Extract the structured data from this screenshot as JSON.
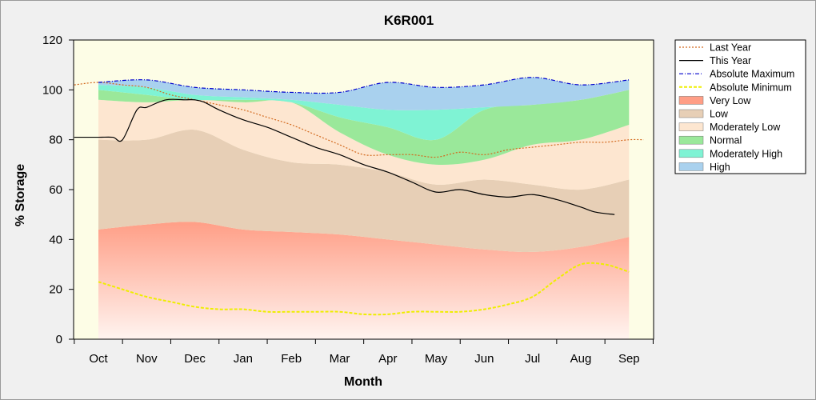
{
  "chart_data": {
    "type": "area",
    "title": "K6R001",
    "xlabel": "Month",
    "ylabel": "% Storage",
    "ylim": [
      0,
      120
    ],
    "yticks": [
      0,
      20,
      40,
      60,
      80,
      100,
      120
    ],
    "months": [
      "Oct",
      "Nov",
      "Dec",
      "Jan",
      "Feb",
      "Mar",
      "Apr",
      "May",
      "Jun",
      "Jul",
      "Aug",
      "Sep"
    ],
    "bands_x": [
      0,
      1,
      2,
      3,
      4,
      5,
      6,
      7,
      8,
      9,
      10,
      11
    ],
    "bands": [
      {
        "name": "Very Low",
        "color": "#ff9e86",
        "lower": [
          0,
          0,
          0,
          0,
          0,
          0,
          0,
          0,
          0,
          0,
          0,
          0
        ],
        "upper": [
          44,
          46,
          47,
          44,
          43,
          42,
          40,
          38,
          36,
          35,
          37,
          41
        ]
      },
      {
        "name": "Low",
        "color": "#e7cfb6",
        "lower": [
          44,
          46,
          47,
          44,
          43,
          42,
          40,
          38,
          36,
          35,
          37,
          41
        ],
        "upper": [
          80,
          80,
          84,
          76,
          71,
          70,
          67,
          62,
          64,
          62,
          60,
          64
        ]
      },
      {
        "name": "Moderately Low",
        "color": "#fde6d0",
        "lower": [
          80,
          80,
          84,
          76,
          71,
          70,
          67,
          62,
          64,
          62,
          60,
          64
        ],
        "upper": [
          96,
          95,
          96,
          95,
          95,
          83,
          74,
          70,
          72,
          78,
          80,
          86
        ]
      },
      {
        "name": "Normal",
        "color": "#9ae89a",
        "lower": [
          96,
          95,
          96,
          95,
          95,
          83,
          74,
          70,
          72,
          78,
          80,
          86
        ],
        "upper": [
          100,
          98,
          96,
          96,
          95,
          89,
          85,
          80,
          92,
          94,
          96,
          100
        ]
      },
      {
        "name": "Moderately High",
        "color": "#7ff3d4",
        "lower": [
          100,
          98,
          96,
          96,
          95,
          89,
          85,
          80,
          92,
          94,
          96,
          100
        ],
        "upper": [
          102,
          101,
          98,
          97,
          96,
          94,
          92,
          92,
          93,
          94,
          96,
          100
        ]
      },
      {
        "name": "High",
        "color": "#a9d1ee",
        "lower": [
          102,
          101,
          98,
          97,
          96,
          94,
          92,
          92,
          93,
          94,
          96,
          100
        ],
        "upper": [
          103,
          104,
          101,
          100,
          99,
          99,
          103,
          101,
          102,
          105,
          102,
          104
        ]
      }
    ],
    "series": [
      {
        "name": "Last Year",
        "color": "#d2691e",
        "style": "dotted",
        "x": [
          -0.5,
          0,
          0.5,
          1,
          1.5,
          2,
          2.5,
          3,
          3.5,
          4,
          4.5,
          5,
          5.5,
          6,
          6.5,
          7,
          7.5,
          8,
          8.5,
          9,
          9.5,
          10,
          10.5,
          11,
          11.3
        ],
        "y": [
          102,
          103,
          102,
          101,
          98,
          96,
          94,
          92,
          89,
          86,
          82,
          78,
          74,
          74,
          74,
          73,
          75,
          74,
          76,
          77,
          78,
          79,
          79,
          80,
          80
        ]
      },
      {
        "name": "This Year",
        "color": "#000000",
        "style": "solid",
        "x": [
          -0.5,
          0,
          0.3,
          0.5,
          0.8,
          1,
          1.4,
          1.8,
          2,
          2.2,
          2.5,
          3,
          3.5,
          4,
          4.5,
          5,
          5.5,
          6,
          6.5,
          7,
          7.5,
          8,
          8.5,
          9,
          9.5,
          10,
          10.3,
          10.7
        ],
        "y": [
          81,
          81,
          81,
          80,
          92,
          93,
          96,
          96,
          96,
          95,
          92,
          88,
          85,
          81,
          77,
          74,
          70,
          67,
          63,
          59,
          60,
          58,
          57,
          58,
          56,
          53,
          51,
          50
        ]
      },
      {
        "name": "Absolute Maximum",
        "color": "#0000cc",
        "style": "dashdot",
        "x": [
          0,
          1,
          2,
          3,
          4,
          5,
          6,
          7,
          8,
          9,
          10,
          11
        ],
        "y": [
          103,
          104,
          101,
          100,
          99,
          99,
          103,
          101,
          102,
          105,
          102,
          104
        ]
      },
      {
        "name": "Absolute Minimum",
        "color": "#eeee00",
        "style": "dashed",
        "x": [
          0,
          0.5,
          1,
          1.5,
          2,
          2.5,
          3,
          3.5,
          4,
          4.5,
          5,
          5.5,
          6,
          6.5,
          7,
          7.5,
          8,
          8.5,
          9,
          9.5,
          10,
          10.5,
          11
        ],
        "y": [
          23,
          20,
          17,
          15,
          13,
          12,
          12,
          11,
          11,
          11,
          11,
          10,
          10,
          11,
          11,
          11,
          12,
          14,
          17,
          24,
          30,
          30,
          27
        ]
      }
    ],
    "legend": {
      "position": "right",
      "items": [
        {
          "label": "Last Year",
          "kind": "line",
          "color": "#d2691e",
          "style": "dotted"
        },
        {
          "label": "This Year",
          "kind": "line",
          "color": "#000000",
          "style": "solid"
        },
        {
          "label": "Absolute Maximum",
          "kind": "line",
          "color": "#0000cc",
          "style": "dashdot"
        },
        {
          "label": "Absolute Minimum",
          "kind": "line",
          "color": "#eeee00",
          "style": "dashed"
        },
        {
          "label": "Very Low",
          "kind": "area",
          "color": "#ff9e86"
        },
        {
          "label": "Low",
          "kind": "area",
          "color": "#e7cfb6"
        },
        {
          "label": "Moderately Low",
          "kind": "area",
          "color": "#fde6d0"
        },
        {
          "label": "Normal",
          "kind": "area",
          "color": "#9ae89a"
        },
        {
          "label": "Moderately High",
          "kind": "area",
          "color": "#7ff3d4"
        },
        {
          "label": "High",
          "kind": "area",
          "color": "#a9d1ee"
        }
      ]
    },
    "grid": false,
    "plot_background": "#fdfde6"
  }
}
